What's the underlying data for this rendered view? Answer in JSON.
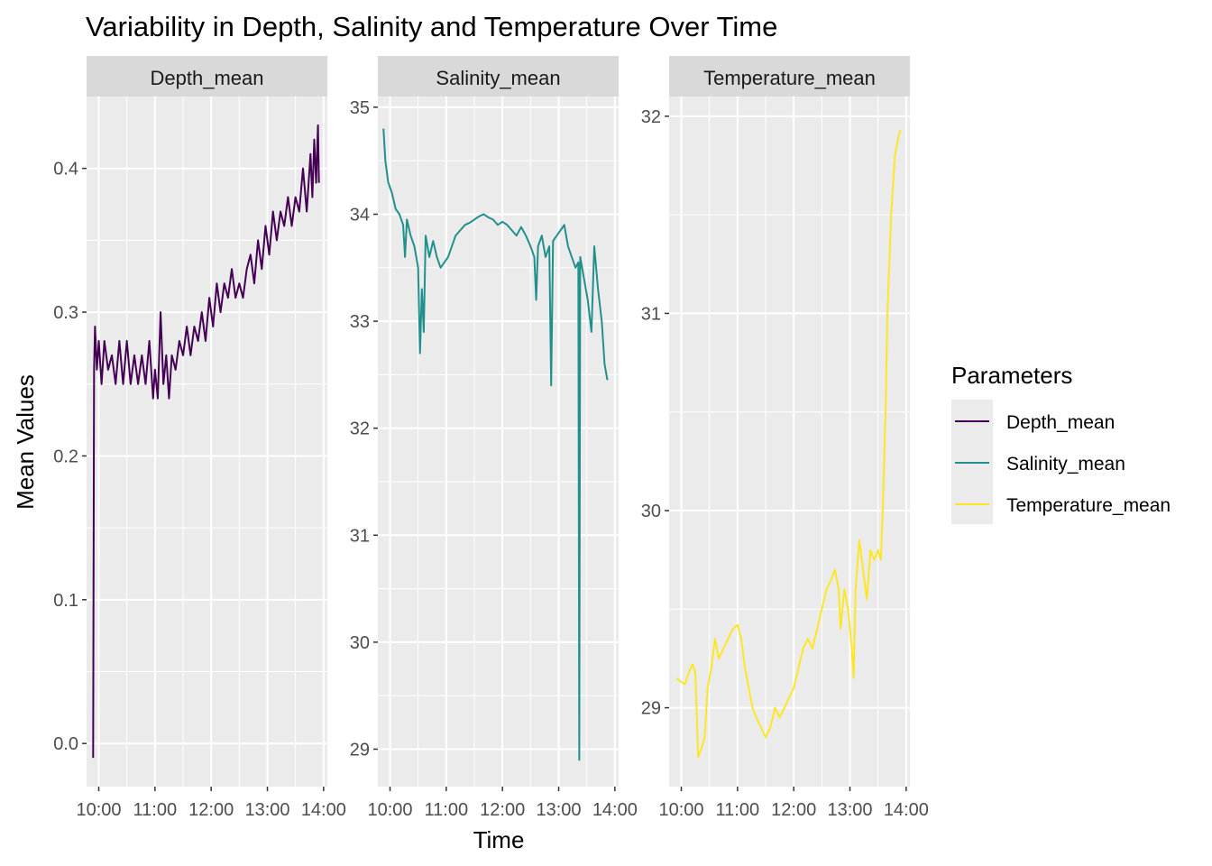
{
  "chart_data": {
    "type": "line",
    "title": "Variability in Depth, Salinity and Temperature Over Time",
    "xlabel": "Time",
    "ylabel": "Mean Values",
    "x_ticks": [
      "10:00",
      "11:00",
      "12:00",
      "13:00",
      "14:00"
    ],
    "x_range": [
      "09:47",
      "14:04"
    ],
    "legend": {
      "title": "Parameters",
      "position": "right",
      "entries": [
        "Depth_mean",
        "Salinity_mean",
        "Temperature_mean"
      ]
    },
    "grid": true,
    "colors": {
      "Depth_mean": "#440154",
      "Salinity_mean": "#21908C",
      "Temperature_mean": "#FDE725"
    },
    "panels": [
      {
        "name": "Depth_mean",
        "ylim": [
          -0.03,
          0.45
        ],
        "y_ticks": [
          0.0,
          0.1,
          0.2,
          0.3,
          0.4
        ],
        "y_tick_labels": [
          "0.0",
          "0.1",
          "0.2",
          "0.3",
          "0.4"
        ],
        "points": [
          [
            "09:54",
            -0.01
          ],
          [
            "09:55",
            0.26
          ],
          [
            "09:56",
            0.29
          ],
          [
            "09:58",
            0.26
          ],
          [
            "10:00",
            0.28
          ],
          [
            "10:03",
            0.25
          ],
          [
            "10:06",
            0.28
          ],
          [
            "10:10",
            0.26
          ],
          [
            "10:14",
            0.27
          ],
          [
            "10:18",
            0.25
          ],
          [
            "10:22",
            0.28
          ],
          [
            "10:26",
            0.25
          ],
          [
            "10:30",
            0.28
          ],
          [
            "10:34",
            0.25
          ],
          [
            "10:38",
            0.27
          ],
          [
            "10:42",
            0.25
          ],
          [
            "10:46",
            0.27
          ],
          [
            "10:50",
            0.25
          ],
          [
            "10:54",
            0.28
          ],
          [
            "10:58",
            0.24
          ],
          [
            "11:00",
            0.26
          ],
          [
            "11:03",
            0.24
          ],
          [
            "11:06",
            0.3
          ],
          [
            "11:09",
            0.25
          ],
          [
            "11:12",
            0.27
          ],
          [
            "11:15",
            0.24
          ],
          [
            "11:18",
            0.27
          ],
          [
            "11:22",
            0.26
          ],
          [
            "11:26",
            0.28
          ],
          [
            "11:30",
            0.27
          ],
          [
            "11:34",
            0.29
          ],
          [
            "11:38",
            0.27
          ],
          [
            "11:42",
            0.29
          ],
          [
            "11:46",
            0.28
          ],
          [
            "11:50",
            0.3
          ],
          [
            "11:54",
            0.28
          ],
          [
            "11:58",
            0.31
          ],
          [
            "12:02",
            0.29
          ],
          [
            "12:06",
            0.32
          ],
          [
            "12:10",
            0.3
          ],
          [
            "12:14",
            0.32
          ],
          [
            "12:18",
            0.31
          ],
          [
            "12:22",
            0.33
          ],
          [
            "12:26",
            0.31
          ],
          [
            "12:30",
            0.32
          ],
          [
            "12:34",
            0.31
          ],
          [
            "12:38",
            0.33
          ],
          [
            "12:42",
            0.34
          ],
          [
            "12:46",
            0.32
          ],
          [
            "12:50",
            0.35
          ],
          [
            "12:54",
            0.33
          ],
          [
            "12:58",
            0.36
          ],
          [
            "13:02",
            0.34
          ],
          [
            "13:06",
            0.37
          ],
          [
            "13:10",
            0.35
          ],
          [
            "13:14",
            0.37
          ],
          [
            "13:18",
            0.36
          ],
          [
            "13:22",
            0.38
          ],
          [
            "13:26",
            0.36
          ],
          [
            "13:30",
            0.38
          ],
          [
            "13:34",
            0.37
          ],
          [
            "13:38",
            0.4
          ],
          [
            "13:42",
            0.37
          ],
          [
            "13:46",
            0.41
          ],
          [
            "13:48",
            0.38
          ],
          [
            "13:50",
            0.42
          ],
          [
            "13:52",
            0.39
          ],
          [
            "13:54",
            0.43
          ],
          [
            "13:55",
            0.39
          ]
        ]
      },
      {
        "name": "Salinity_mean",
        "ylim": [
          28.65,
          35.1
        ],
        "y_ticks": [
          29,
          30,
          31,
          32,
          33,
          34,
          35
        ],
        "y_tick_labels": [
          "29",
          "30",
          "31",
          "32",
          "33",
          "34",
          "35"
        ],
        "points": [
          [
            "09:53",
            34.8
          ],
          [
            "09:55",
            34.5
          ],
          [
            "09:58",
            34.3
          ],
          [
            "10:02",
            34.2
          ],
          [
            "10:06",
            34.05
          ],
          [
            "10:10",
            34.0
          ],
          [
            "10:14",
            33.9
          ],
          [
            "10:16",
            33.6
          ],
          [
            "10:18",
            33.95
          ],
          [
            "10:22",
            33.8
          ],
          [
            "10:26",
            33.7
          ],
          [
            "10:30",
            33.5
          ],
          [
            "10:32",
            32.7
          ],
          [
            "10:34",
            33.3
          ],
          [
            "10:36",
            32.9
          ],
          [
            "10:38",
            33.8
          ],
          [
            "10:42",
            33.6
          ],
          [
            "10:46",
            33.75
          ],
          [
            "10:50",
            33.6
          ],
          [
            "10:54",
            33.5
          ],
          [
            "10:58",
            33.55
          ],
          [
            "11:02",
            33.6
          ],
          [
            "11:06",
            33.7
          ],
          [
            "11:10",
            33.8
          ],
          [
            "11:15",
            33.85
          ],
          [
            "11:20",
            33.9
          ],
          [
            "11:25",
            33.92
          ],
          [
            "11:30",
            33.95
          ],
          [
            "11:35",
            33.98
          ],
          [
            "11:40",
            34.0
          ],
          [
            "11:45",
            33.97
          ],
          [
            "11:50",
            33.95
          ],
          [
            "11:55",
            33.9
          ],
          [
            "12:00",
            33.93
          ],
          [
            "12:05",
            33.9
          ],
          [
            "12:10",
            33.85
          ],
          [
            "12:15",
            33.8
          ],
          [
            "12:20",
            33.88
          ],
          [
            "12:25",
            33.8
          ],
          [
            "12:30",
            33.7
          ],
          [
            "12:34",
            33.6
          ],
          [
            "12:36",
            33.2
          ],
          [
            "12:38",
            33.7
          ],
          [
            "12:42",
            33.8
          ],
          [
            "12:46",
            33.6
          ],
          [
            "12:50",
            33.7
          ],
          [
            "12:52",
            32.4
          ],
          [
            "12:54",
            33.75
          ],
          [
            "12:58",
            33.8
          ],
          [
            "13:02",
            33.85
          ],
          [
            "13:06",
            33.9
          ],
          [
            "13:10",
            33.7
          ],
          [
            "13:14",
            33.6
          ],
          [
            "13:18",
            33.5
          ],
          [
            "13:21",
            33.55
          ],
          [
            "13:22",
            28.9
          ],
          [
            "13:23",
            33.6
          ],
          [
            "13:27",
            33.4
          ],
          [
            "13:31",
            33.2
          ],
          [
            "13:35",
            32.9
          ],
          [
            "13:38",
            33.7
          ],
          [
            "13:42",
            33.3
          ],
          [
            "13:46",
            33.0
          ],
          [
            "13:49",
            32.6
          ],
          [
            "13:52",
            32.45
          ]
        ]
      },
      {
        "name": "Temperature_mean",
        "ylim": [
          28.6,
          32.1
        ],
        "y_ticks": [
          29,
          30,
          31,
          32
        ],
        "y_tick_labels": [
          "29",
          "30",
          "31",
          "32"
        ],
        "points": [
          [
            "09:55",
            29.15
          ],
          [
            "10:00",
            29.13
          ],
          [
            "10:04",
            29.12
          ],
          [
            "10:08",
            29.18
          ],
          [
            "10:12",
            29.22
          ],
          [
            "10:15",
            29.18
          ],
          [
            "10:18",
            28.75
          ],
          [
            "10:22",
            28.8
          ],
          [
            "10:25",
            28.85
          ],
          [
            "10:28",
            29.1
          ],
          [
            "10:32",
            29.2
          ],
          [
            "10:36",
            29.35
          ],
          [
            "10:40",
            29.25
          ],
          [
            "10:45",
            29.3
          ],
          [
            "10:50",
            29.35
          ],
          [
            "10:55",
            29.4
          ],
          [
            "11:00",
            29.42
          ],
          [
            "11:04",
            29.35
          ],
          [
            "11:08",
            29.2
          ],
          [
            "11:12",
            29.1
          ],
          [
            "11:16",
            29.0
          ],
          [
            "11:20",
            28.95
          ],
          [
            "11:25",
            28.9
          ],
          [
            "11:30",
            28.85
          ],
          [
            "11:35",
            28.9
          ],
          [
            "11:40",
            29.0
          ],
          [
            "11:45",
            28.95
          ],
          [
            "11:50",
            29.0
          ],
          [
            "11:55",
            29.05
          ],
          [
            "12:00",
            29.1
          ],
          [
            "12:05",
            29.2
          ],
          [
            "12:10",
            29.3
          ],
          [
            "12:15",
            29.35
          ],
          [
            "12:20",
            29.3
          ],
          [
            "12:25",
            29.4
          ],
          [
            "12:30",
            29.5
          ],
          [
            "12:35",
            29.6
          ],
          [
            "12:40",
            29.65
          ],
          [
            "12:44",
            29.7
          ],
          [
            "12:48",
            29.6
          ],
          [
            "12:50",
            29.4
          ],
          [
            "12:54",
            29.6
          ],
          [
            "12:58",
            29.5
          ],
          [
            "13:02",
            29.3
          ],
          [
            "13:04",
            29.15
          ],
          [
            "13:06",
            29.6
          ],
          [
            "13:10",
            29.85
          ],
          [
            "13:14",
            29.7
          ],
          [
            "13:18",
            29.55
          ],
          [
            "13:22",
            29.8
          ],
          [
            "13:26",
            29.75
          ],
          [
            "13:30",
            29.8
          ],
          [
            "13:33",
            29.75
          ],
          [
            "13:35",
            30.0
          ],
          [
            "13:38",
            30.5
          ],
          [
            "13:40",
            31.0
          ],
          [
            "13:44",
            31.5
          ],
          [
            "13:48",
            31.8
          ],
          [
            "13:52",
            31.9
          ],
          [
            "13:54",
            31.93
          ]
        ]
      }
    ]
  }
}
